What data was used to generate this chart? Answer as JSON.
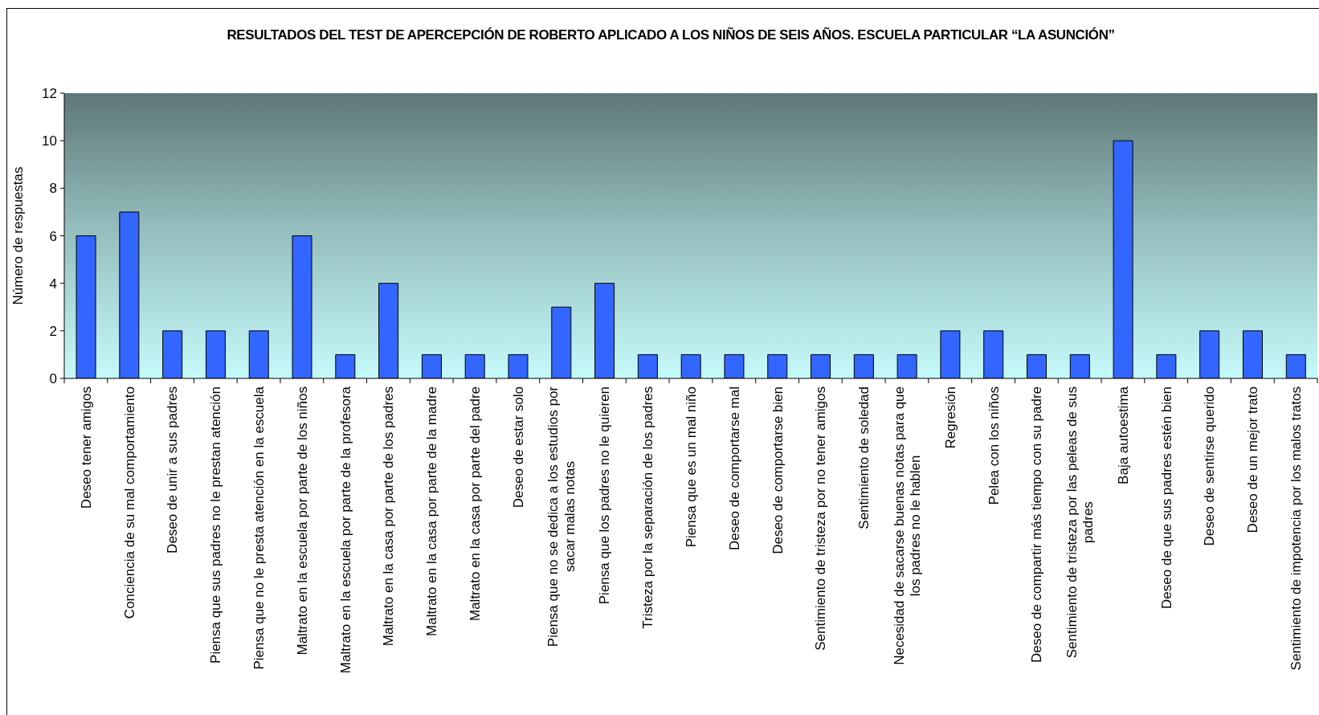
{
  "chart_data": {
    "type": "bar",
    "title": "RESULTADOS DEL TEST DE APERCEPCIÓN DE ROBERTO APLICADO A LOS NIÑOS DE SEIS AÑOS. ESCUELA PARTICULAR “LA ASUNCIÓN”",
    "ylabel": "Número de respuestas",
    "categories": [
      "Deseo tener amigos",
      "Conciencia de su mal comportamiento",
      "Deseo de unir a sus padres",
      "Piensa que sus padres no le prestan atención",
      "Piensa que no le presta atención en la escuela",
      "Maltrato en la escuela por parte de los niños",
      "Maltrato en la escuela por parte de la profesora",
      "Maltrato en la casa por parte de los padres",
      "Maltrato en la casa por parte de la madre",
      "Maltrato en la casa por parte del padre",
      "Deseo de estar solo",
      "Piensa que no se dedica a los estudios por sacar malas notas",
      "Piensa que los padres no le quieren",
      "Tristeza por la separación de los padres",
      "Piensa que es un mal niño",
      "Deseo de comportarse mal",
      "Deseo de comportarse bien",
      "Sentimiento de tristeza por no tener amigos",
      "Sentimiento de soledad",
      "Necesidad de sacarse buenas notas para que los padres no le hablen",
      "Regresión",
      "Pelea con los niños",
      "Deseo de compartir más tiempo con su padre",
      "Sentimiento de tristeza por las peleas de sus padres",
      "Baja autoestima",
      "Deseo de que sus padres estén bien",
      "Deseo de sentirse querido",
      "Deseo de un mejor trato",
      "Sentimiento de impotencia por los malos tratos"
    ],
    "values": [
      6,
      7,
      2,
      2,
      2,
      6,
      1,
      4,
      1,
      1,
      1,
      3,
      4,
      1,
      1,
      1,
      1,
      1,
      1,
      1,
      2,
      2,
      1,
      1,
      10,
      1,
      2,
      2,
      1
    ],
    "color": "#3366ff",
    "ylim": [
      0,
      12
    ],
    "yticks": [
      0,
      2,
      4,
      6,
      8,
      10,
      12
    ]
  }
}
